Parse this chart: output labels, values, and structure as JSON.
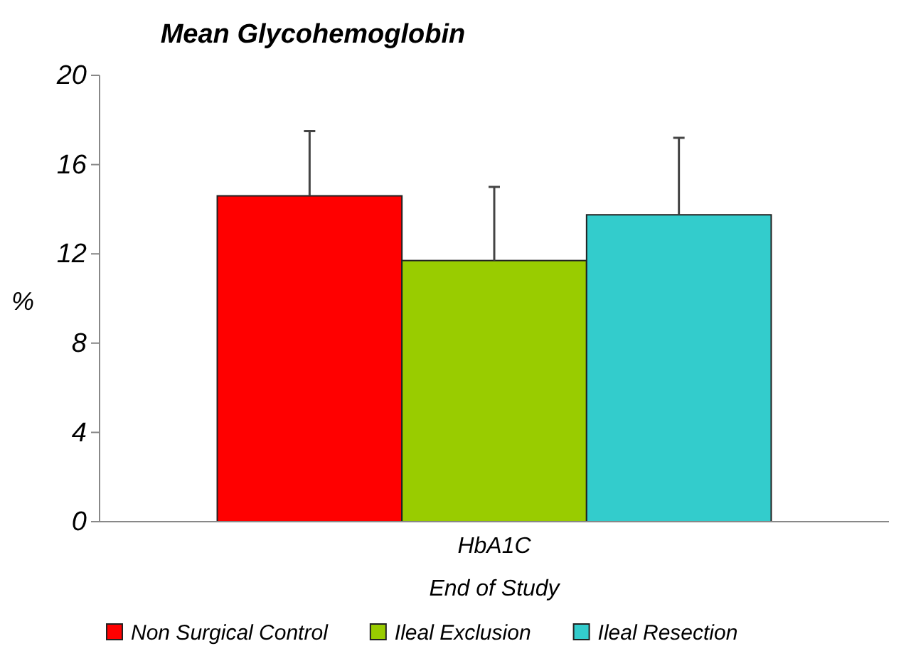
{
  "chart_data": {
    "type": "bar",
    "title": "Mean Glycohemoglobin",
    "xlabel": "End of Study",
    "ylabel": "%",
    "categories": [
      "HbA1C"
    ],
    "series": [
      {
        "name": "Non Surgical Control",
        "color": "#ff0000",
        "values": [
          14.6
        ],
        "errors": [
          2.9
        ]
      },
      {
        "name": "Ileal Exclusion",
        "color": "#99cc00",
        "values": [
          11.7
        ],
        "errors": [
          3.3
        ]
      },
      {
        "name": "Ileal Resection",
        "color": "#33cccc",
        "values": [
          13.75
        ],
        "errors": [
          3.45
        ]
      }
    ],
    "ylim": [
      0,
      20
    ],
    "yticks": [
      0,
      4,
      8,
      12,
      16,
      20
    ],
    "grid": false,
    "legend": "bottom"
  }
}
